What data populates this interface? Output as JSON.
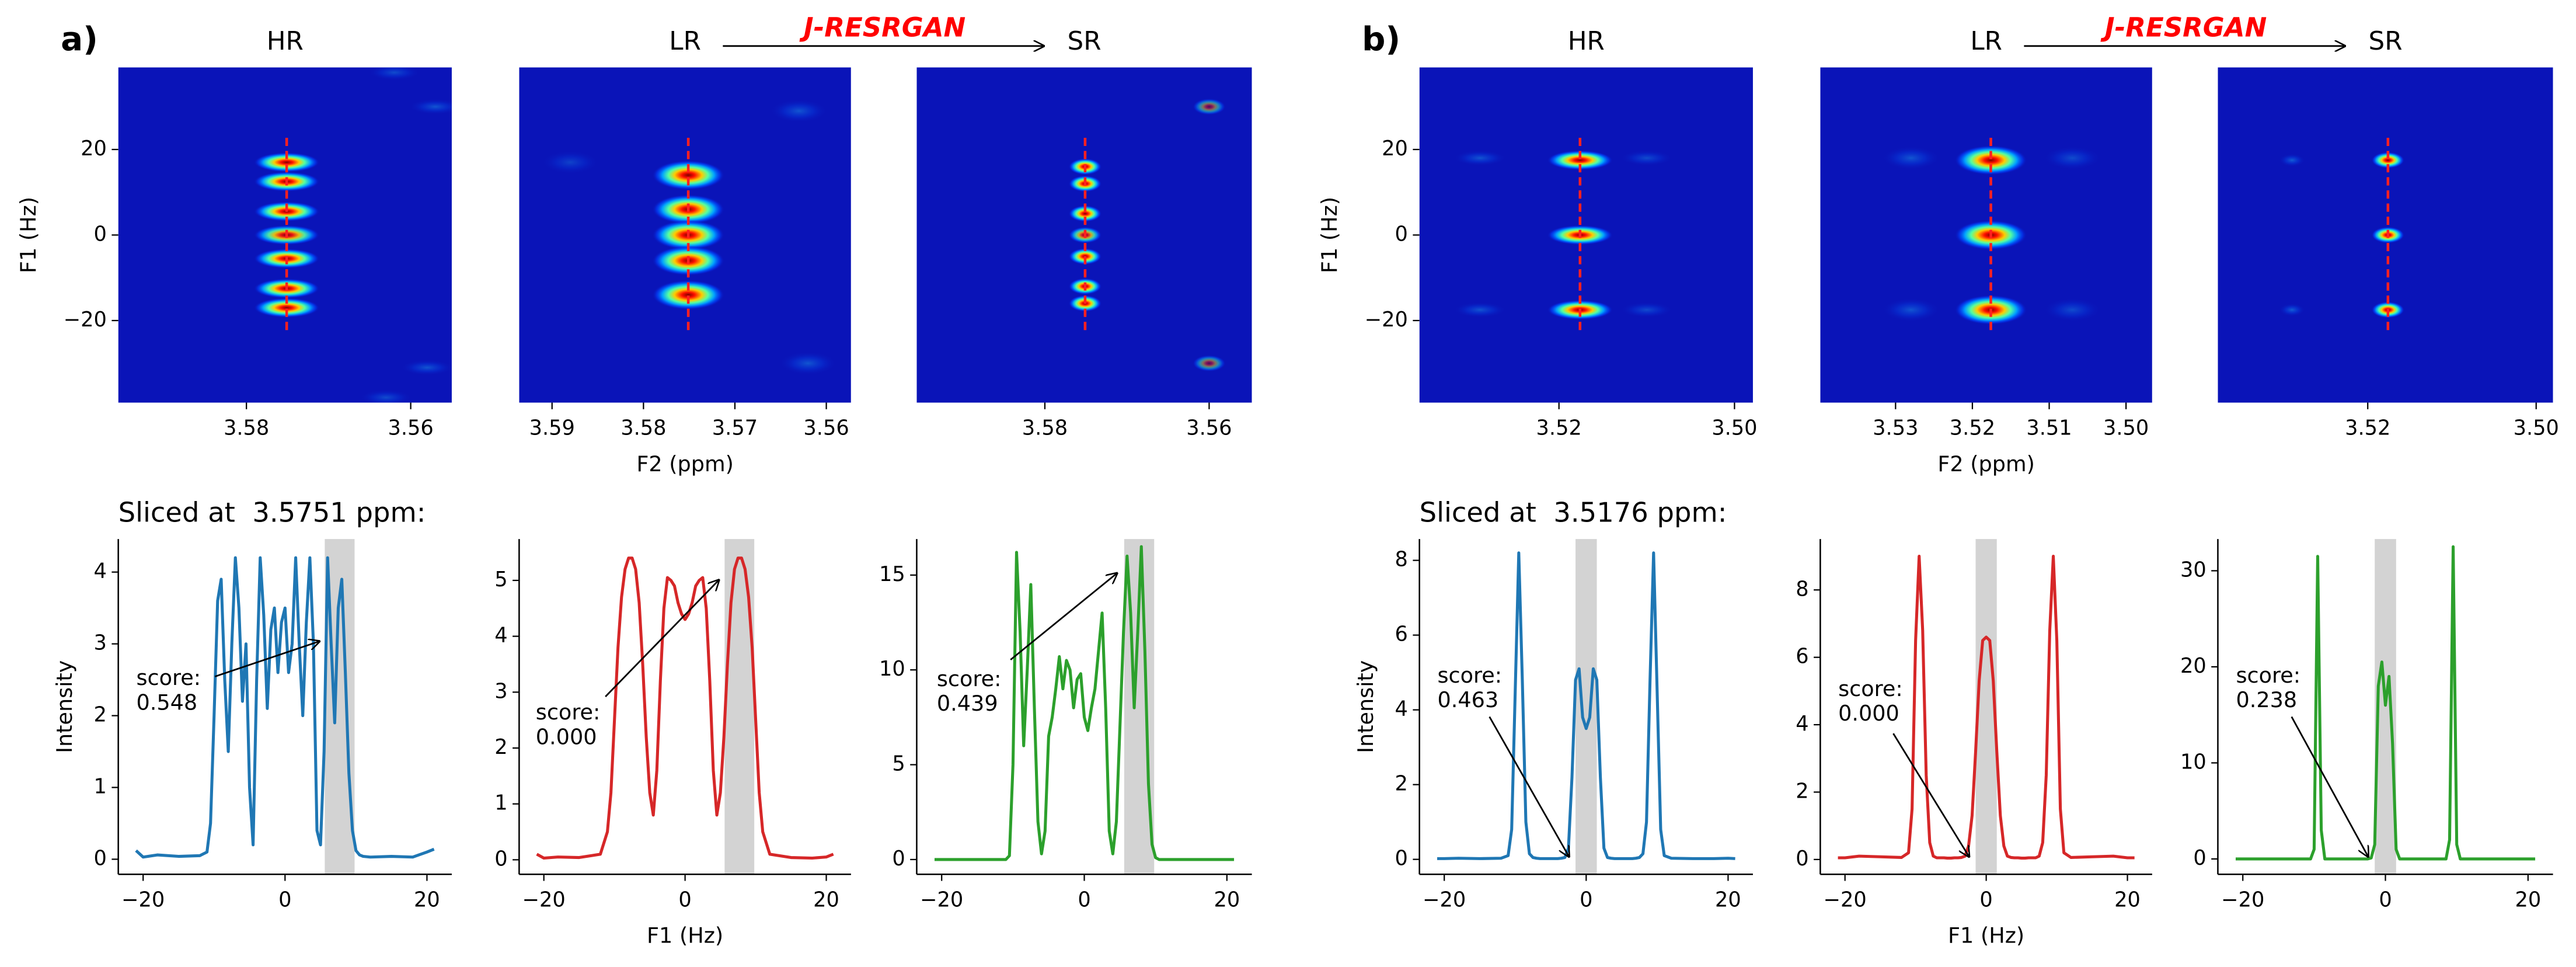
{
  "chart_data": [
    {
      "type": "heatmap",
      "panel_label": "a)",
      "title": "HR",
      "xlim": [
        3.5956,
        3.555
      ],
      "xticks": [
        3.58,
        3.56
      ],
      "ylim": [
        -39.2,
        39.2
      ],
      "yticks": [
        {
          "value": -20,
          "label": "−20"
        },
        0,
        20
      ],
      "ylabel": "F1 (Hz)",
      "slice_ppm": 3.5751,
      "peaks": {
        "f2": [
          3.5751,
          3.5751,
          3.5751,
          3.5751,
          3.5751,
          3.5751,
          3.5751,
          3.562,
          3.557,
          3.558,
          3.563
        ],
        "f1": [
          17,
          12.5,
          5.5,
          0,
          -5.5,
          -12.5,
          -17,
          38,
          30,
          -31,
          -38
        ],
        "intensity": [
          1,
          1,
          1,
          0.9,
          1,
          1,
          1,
          0.3,
          0.35,
          0.35,
          0.3
        ]
      }
    },
    {
      "type": "heatmap",
      "title": "LR",
      "xlabel": "F2 (ppm)",
      "annotation": "J-RESRGAN",
      "xlim": [
        3.5936,
        3.5573
      ],
      "xticks": [
        3.59,
        3.58,
        3.57,
        3.56
      ],
      "ylim": [
        -39.2,
        39.2
      ],
      "slice_ppm": 3.5751,
      "peaks": {
        "f2": [
          3.5751,
          3.5751,
          3.5751,
          3.5751,
          3.5751,
          3.563,
          3.562,
          3.588
        ],
        "f1": [
          14,
          6,
          0,
          -6,
          -14,
          29,
          -30,
          17
        ],
        "intensity": [
          1,
          1,
          1,
          1,
          1,
          0.35,
          0.35,
          0.25
        ]
      }
    },
    {
      "type": "heatmap",
      "title": "SR",
      "xlim": [
        3.5956,
        3.5548
      ],
      "xticks": [
        3.58,
        3.56
      ],
      "ylim": [
        -39.2,
        39.2
      ],
      "slice_ppm": 3.5751,
      "peaks": {
        "f2": [
          3.5751,
          3.5751,
          3.5751,
          3.5751,
          3.5751,
          3.5751,
          3.5751,
          3.56,
          3.56
        ],
        "f1": [
          16,
          12,
          5,
          0,
          -5,
          -12,
          -16,
          30,
          -30
        ],
        "intensity": [
          1,
          1,
          1,
          0.8,
          1,
          1,
          1,
          0.5,
          0.5
        ]
      }
    },
    {
      "type": "line",
      "title": "Sliced at  3.5751 ppm:",
      "ylabel": "Intensity",
      "color": "#1f77b4",
      "xlim": [
        -23.5,
        23.5
      ],
      "xticks": [
        {
          "value": -20,
          "label": "−20"
        },
        0,
        20
      ],
      "ylim": [
        -0.21,
        4.46
      ],
      "yticks": [
        0,
        1,
        2,
        3,
        4
      ],
      "highlight": [
        5.6,
        9.8
      ],
      "annotation": [
        "score:",
        "0.548"
      ],
      "x": [
        -21,
        -20,
        -18,
        -15,
        -12,
        -11,
        -10.5,
        -10,
        -9.5,
        -9,
        -8.5,
        -8,
        -7.5,
        -7,
        -6.5,
        -6,
        -5.5,
        -5,
        -4.5,
        -4,
        -3.5,
        -3,
        -2.5,
        -2,
        -1.5,
        -1,
        -0.5,
        0,
        0.5,
        1,
        1.5,
        2,
        2.5,
        3,
        3.5,
        4,
        4.5,
        5,
        5.5,
        6,
        6.5,
        7,
        7.5,
        8,
        8.5,
        9,
        9.5,
        10,
        10.5,
        11,
        12,
        15,
        18,
        20,
        21
      ],
      "values": [
        0.12,
        0.03,
        0.06,
        0.04,
        0.05,
        0.1,
        0.5,
        2.0,
        3.6,
        3.9,
        2.5,
        1.5,
        3.0,
        4.2,
        3.5,
        2.2,
        3.0,
        1.0,
        0.2,
        2.5,
        4.2,
        3.4,
        2.1,
        3.2,
        3.5,
        2.6,
        3.3,
        3.5,
        2.6,
        3.0,
        4.2,
        3.0,
        2.0,
        3.3,
        4.2,
        3.0,
        0.4,
        0.2,
        1.5,
        4.2,
        3.0,
        1.9,
        3.5,
        3.9,
        2.6,
        1.2,
        0.4,
        0.12,
        0.06,
        0.04,
        0.03,
        0.04,
        0.03,
        0.1,
        0.14
      ]
    },
    {
      "type": "line",
      "xlabel": "F1 (Hz)",
      "color": "#d62728",
      "xlim": [
        -23.5,
        23.5
      ],
      "xticks": [
        {
          "value": -20,
          "label": "−20"
        },
        0,
        20
      ],
      "ylim": [
        -0.26,
        5.74
      ],
      "yticks": [
        0,
        1,
        2,
        3,
        4,
        5
      ],
      "highlight": [
        5.6,
        9.8
      ],
      "annotation": [
        "score:",
        "0.000"
      ],
      "x": [
        -21,
        -20,
        -18,
        -15,
        -12,
        -11,
        -10.5,
        -10,
        -9.5,
        -9,
        -8.5,
        -8,
        -7.5,
        -7,
        -6.5,
        -6,
        -5.5,
        -5,
        -4.5,
        -4,
        -3.5,
        -3,
        -2.5,
        -2,
        -1.5,
        -1,
        -0.5,
        0,
        0.5,
        1,
        1.5,
        2,
        2.5,
        3,
        3.5,
        4,
        4.5,
        5,
        5.5,
        6,
        6.5,
        7,
        7.5,
        8,
        8.5,
        9,
        9.5,
        10,
        10.5,
        11,
        12,
        15,
        18,
        20,
        21
      ],
      "values": [
        0.1,
        0.03,
        0.05,
        0.04,
        0.1,
        0.5,
        1.2,
        2.5,
        3.8,
        4.7,
        5.2,
        5.4,
        5.4,
        5.2,
        4.6,
        3.5,
        2.2,
        1.2,
        0.8,
        1.6,
        3.2,
        4.5,
        5.05,
        5.0,
        4.9,
        4.6,
        4.4,
        4.3,
        4.4,
        4.6,
        4.9,
        5.0,
        5.05,
        4.5,
        3.2,
        1.6,
        0.8,
        1.2,
        2.2,
        3.5,
        4.6,
        5.2,
        5.4,
        5.4,
        5.2,
        4.7,
        3.8,
        2.5,
        1.2,
        0.5,
        0.1,
        0.04,
        0.03,
        0.05,
        0.1
      ]
    },
    {
      "type": "line",
      "color": "#2ca02c",
      "xlim": [
        -23.5,
        23.5
      ],
      "xticks": [
        {
          "value": -20,
          "label": "−20"
        },
        0,
        20
      ],
      "ylim": [
        -0.78,
        16.9
      ],
      "yticks": [
        0,
        5,
        10,
        15
      ],
      "highlight": [
        5.6,
        9.8
      ],
      "annotation": [
        "score:",
        "0.439"
      ],
      "x": [
        -21,
        -20,
        -18,
        -15,
        -12,
        -11,
        -10.5,
        -10,
        -9.5,
        -9,
        -8.5,
        -8,
        -7.5,
        -7,
        -6.5,
        -6,
        -5.5,
        -5,
        -4.5,
        -4,
        -3.5,
        -3,
        -2.5,
        -2,
        -1.5,
        -1,
        -0.5,
        0,
        0.5,
        1,
        1.5,
        2,
        2.5,
        3,
        3.5,
        4,
        4.5,
        5,
        5.5,
        6,
        6.5,
        7,
        7.5,
        8,
        8.5,
        9,
        9.5,
        10,
        10.5,
        11,
        12,
        15,
        18,
        20,
        21
      ],
      "values": [
        0,
        0,
        0,
        0,
        0,
        0,
        0.2,
        5,
        16.2,
        12,
        6,
        10,
        14.5,
        8,
        2,
        0.3,
        1.5,
        6.5,
        7.5,
        9,
        10.7,
        9,
        10.5,
        10,
        8,
        9.5,
        9.8,
        7.5,
        6.8,
        8,
        9,
        11,
        13,
        8,
        1.5,
        0.3,
        2,
        7,
        12,
        16,
        13,
        8,
        12,
        16.5,
        11,
        4,
        0.8,
        0.1,
        0,
        0,
        0,
        0,
        0,
        0,
        0
      ]
    },
    {
      "type": "heatmap",
      "panel_label": "b)",
      "title": "HR",
      "xlim": [
        3.5359,
        3.4979
      ],
      "xticks": [
        3.52,
        {
          "value": 3.5,
          "label": "3.50"
        }
      ],
      "ylim": [
        -39.2,
        39.2
      ],
      "yticks": [
        {
          "value": -20,
          "label": "−20"
        },
        0,
        20
      ],
      "ylabel": "F1 (Hz)",
      "slice_ppm": 3.5176,
      "peaks": {
        "f2": [
          3.5176,
          3.5176,
          3.5176,
          3.529,
          3.529,
          3.51,
          3.51
        ],
        "f1": [
          17.5,
          0,
          -17.5,
          18,
          -17.5,
          18,
          -17.5
        ],
        "intensity": [
          1,
          1,
          1,
          0.35,
          0.35,
          0.3,
          0.3
        ]
      }
    },
    {
      "type": "heatmap",
      "title": "LR",
      "xlabel": "F2 (ppm)",
      "annotation": "J-RESRGAN",
      "xlim": [
        3.5398,
        3.4966
      ],
      "xticks": [
        3.53,
        3.52,
        3.51,
        {
          "value": 3.5,
          "label": "3.50"
        }
      ],
      "ylim": [
        -39.2,
        39.2
      ],
      "slice_ppm": 3.5176,
      "peaks": {
        "f2": [
          3.5176,
          3.5176,
          3.5176,
          3.528,
          3.528,
          3.507,
          3.507
        ],
        "f1": [
          17.5,
          0,
          -17.5,
          18,
          -17.5,
          18,
          -17.5
        ],
        "intensity": [
          1,
          1,
          1,
          0.35,
          0.35,
          0.3,
          0.3
        ]
      }
    },
    {
      "type": "heatmap",
      "title": "SR",
      "xlim": [
        3.5378,
        3.498
      ],
      "xticks": [
        3.52,
        {
          "value": 3.5,
          "label": "3.50"
        }
      ],
      "ylim": [
        -39.2,
        39.2
      ],
      "slice_ppm": 3.5176,
      "peaks": {
        "f2": [
          3.5176,
          3.5176,
          3.5176,
          3.529,
          3.529
        ],
        "f1": [
          17.5,
          0,
          -17.5,
          17.5,
          -17.5
        ],
        "intensity": [
          1,
          1,
          1,
          0.4,
          0.4
        ]
      }
    },
    {
      "type": "line",
      "title": "Sliced at  3.5176 ppm:",
      "ylabel": "Intensity",
      "color": "#1f77b4",
      "xlim": [
        -23.5,
        23.5
      ],
      "xticks": [
        {
          "value": -20,
          "label": "−20"
        },
        0,
        20
      ],
      "ylim": [
        -0.4,
        8.57
      ],
      "yticks": [
        0,
        2,
        4,
        6,
        8
      ],
      "highlight": [
        -1.5,
        1.5
      ],
      "annotation": [
        "score:",
        "0.463"
      ],
      "x": [
        -21,
        -20,
        -18,
        -15,
        -12,
        -11,
        -10.5,
        -10,
        -9.5,
        -9,
        -8.5,
        -8,
        -7.5,
        -7,
        -6.5,
        -6,
        -5.5,
        -5,
        -4.5,
        -4,
        -3.5,
        -3,
        -2.5,
        -2,
        -1.5,
        -1,
        -0.5,
        0,
        0.5,
        1,
        1.5,
        2,
        2.5,
        3,
        3.5,
        4,
        4.5,
        5,
        5.5,
        6,
        6.5,
        7,
        7.5,
        8,
        8.5,
        9,
        9.5,
        10,
        10.5,
        11,
        12,
        15,
        18,
        20,
        21
      ],
      "values": [
        0.02,
        0.02,
        0.03,
        0.02,
        0.03,
        0.1,
        0.8,
        4.5,
        8.2,
        4.8,
        1.0,
        0.15,
        0.05,
        0.03,
        0.02,
        0.02,
        0.02,
        0.02,
        0.02,
        0.02,
        0.03,
        0.05,
        0.3,
        2.2,
        4.8,
        5.1,
        3.8,
        3.5,
        3.8,
        5.1,
        4.8,
        2.2,
        0.3,
        0.05,
        0.03,
        0.02,
        0.02,
        0.02,
        0.02,
        0.02,
        0.02,
        0.03,
        0.05,
        0.15,
        1.0,
        4.8,
        8.2,
        4.5,
        0.8,
        0.1,
        0.03,
        0.02,
        0.02,
        0.03,
        0.02
      ]
    },
    {
      "type": "line",
      "xlabel": "F1 (Hz)",
      "color": "#d62728",
      "xlim": [
        -23.5,
        23.5
      ],
      "xticks": [
        {
          "value": -20,
          "label": "−20"
        },
        0,
        20
      ],
      "ylim": [
        -0.44,
        9.51
      ],
      "yticks": [
        0,
        2,
        4,
        6,
        8
      ],
      "highlight": [
        -1.5,
        1.5
      ],
      "annotation": [
        "score:",
        "0.000"
      ],
      "x": [
        -21,
        -20,
        -18,
        -15,
        -12,
        -11,
        -10.5,
        -10,
        -9.5,
        -9,
        -8.5,
        -8,
        -7.5,
        -7,
        -6.5,
        -6,
        -5.5,
        -5,
        -4.5,
        -4,
        -3.5,
        -3,
        -2.5,
        -2,
        -1.5,
        -1,
        -0.5,
        0,
        0.5,
        1,
        1.5,
        2,
        2.5,
        3,
        3.5,
        4,
        4.5,
        5,
        5.5,
        6,
        6.5,
        7,
        7.5,
        8,
        8.5,
        9,
        9.5,
        10,
        10.5,
        11,
        12,
        15,
        18,
        20,
        21
      ],
      "values": [
        0.05,
        0.05,
        0.1,
        0.08,
        0.06,
        0.2,
        1.5,
        6.5,
        9.0,
        6.8,
        2.5,
        0.5,
        0.1,
        0.05,
        0.05,
        0.05,
        0.04,
        0.04,
        0.05,
        0.05,
        0.06,
        0.1,
        0.4,
        1.3,
        3.2,
        5.3,
        6.5,
        6.6,
        6.5,
        5.3,
        3.2,
        1.3,
        0.4,
        0.1,
        0.06,
        0.05,
        0.05,
        0.04,
        0.04,
        0.05,
        0.05,
        0.05,
        0.1,
        0.5,
        2.5,
        6.8,
        9.0,
        6.5,
        1.5,
        0.2,
        0.06,
        0.08,
        0.1,
        0.05,
        0.05
      ]
    },
    {
      "type": "line",
      "color": "#2ca02c",
      "xlim": [
        -23.5,
        23.5
      ],
      "xticks": [
        {
          "value": -20,
          "label": "−20"
        },
        0,
        20
      ],
      "ylim": [
        -1.6,
        33.3
      ],
      "yticks": [
        0,
        10,
        20,
        30
      ],
      "highlight": [
        -1.5,
        1.5
      ],
      "annotation": [
        "score:",
        "0.238"
      ],
      "x": [
        -21,
        -20,
        -18,
        -15,
        -12,
        -11,
        -10.5,
        -10,
        -9.5,
        -9,
        -8.5,
        -8,
        -7.5,
        -7,
        -6.5,
        -6,
        -5.5,
        -5,
        -4.5,
        -4,
        -3.5,
        -3,
        -2.5,
        -2,
        -1.5,
        -1,
        -0.5,
        0,
        0.5,
        1,
        1.5,
        2,
        2.5,
        3,
        3.5,
        4,
        4.5,
        5,
        5.5,
        6,
        6.5,
        7,
        7.5,
        8,
        8.5,
        9,
        9.5,
        10,
        10.5,
        11,
        12,
        15,
        18,
        20,
        21
      ],
      "values": [
        0,
        0,
        0,
        0,
        0,
        0,
        0,
        1,
        31.5,
        3,
        0,
        0,
        0,
        0,
        0,
        0,
        0,
        0,
        0,
        0,
        0,
        0,
        0,
        0.1,
        1.5,
        18,
        20.5,
        16,
        19,
        12,
        1,
        0,
        0,
        0,
        0,
        0,
        0,
        0,
        0,
        0,
        0,
        0,
        0,
        0,
        0,
        2,
        32.5,
        1.5,
        0,
        0,
        0,
        0,
        0,
        0,
        0
      ]
    }
  ]
}
